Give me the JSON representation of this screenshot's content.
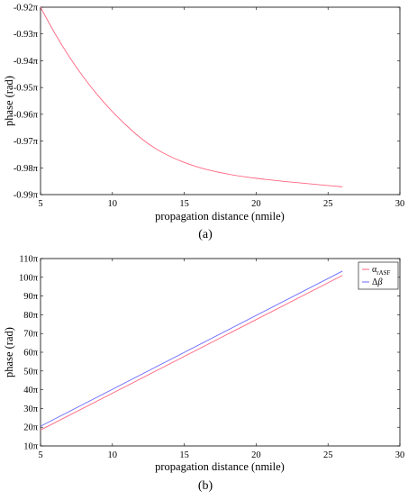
{
  "chart_data": [
    {
      "type": "line",
      "panel": "(a)",
      "xlabel": "propagation distance (nmile)",
      "ylabel": "phase (rad)",
      "xlim": [
        5,
        30
      ],
      "ylim": [
        -0.99,
        -0.92
      ],
      "x_ticks": [
        "5",
        "10",
        "15",
        "20",
        "25",
        "30"
      ],
      "y_ticks": [
        "-0.92π",
        "-0.93π",
        "-0.94π",
        "-0.95π",
        "-0.96π",
        "-0.97π",
        "-0.98π",
        "-0.99π"
      ],
      "grid": false,
      "series": [
        {
          "color": "#ff6680",
          "x": [
            5,
            6,
            7,
            8,
            9,
            10,
            11,
            12,
            13,
            14,
            15,
            16,
            17,
            18,
            19,
            20,
            21,
            22,
            23,
            24,
            25,
            26
          ],
          "y": [
            -0.92,
            -0.9298,
            -0.9385,
            -0.9462,
            -0.953,
            -0.959,
            -0.9643,
            -0.969,
            -0.9728,
            -0.9757,
            -0.978,
            -0.9798,
            -0.9812,
            -0.9823,
            -0.9832,
            -0.9839,
            -0.9845,
            -0.9851,
            -0.9856,
            -0.9861,
            -0.9866,
            -0.9871
          ]
        }
      ]
    },
    {
      "type": "line",
      "panel": "(b)",
      "xlabel": "propagation distance (nmile)",
      "ylabel": "phase (rad)",
      "xlim": [
        5,
        30
      ],
      "ylim": [
        10,
        110
      ],
      "x_ticks": [
        "5",
        "10",
        "15",
        "20",
        "25",
        "30"
      ],
      "y_ticks": [
        "10π",
        "20π",
        "30π",
        "40π",
        "50π",
        "60π",
        "70π",
        "80π",
        "90π",
        "100π",
        "110π"
      ],
      "grid": false,
      "legend": "top-right",
      "series": [
        {
          "name": "α_rASF",
          "color": "#ff6680",
          "x": [
            5,
            26
          ],
          "y": [
            18.5,
            101
          ]
        },
        {
          "name": "Δβ",
          "color": "#6a6aff",
          "x": [
            5,
            26
          ],
          "y": [
            20.5,
            103.3
          ]
        }
      ]
    }
  ]
}
